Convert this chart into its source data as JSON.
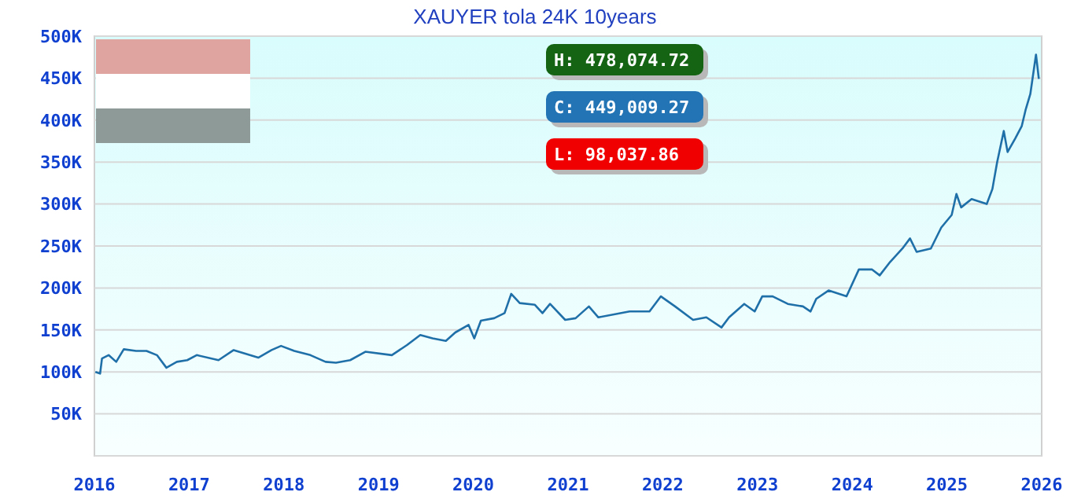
{
  "chart_data": {
    "type": "line",
    "title": "XAUYER tola 24K 10years",
    "x": [
      2016.01,
      2016.06,
      2016.08,
      2016.15,
      2016.23,
      2016.31,
      2016.44,
      2016.55,
      2016.66,
      2016.76,
      2016.87,
      2016.98,
      2017.08,
      2017.31,
      2017.47,
      2017.73,
      2017.87,
      2017.97,
      2018.11,
      2018.28,
      2018.44,
      2018.55,
      2018.7,
      2018.86,
      2019.14,
      2019.3,
      2019.44,
      2019.57,
      2019.71,
      2019.81,
      2019.95,
      2020.01,
      2020.08,
      2020.22,
      2020.33,
      2020.4,
      2020.49,
      2020.65,
      2020.73,
      2020.81,
      2020.97,
      2021.08,
      2021.22,
      2021.32,
      2021.65,
      2021.86,
      2021.98,
      2022.13,
      2022.32,
      2022.46,
      2022.62,
      2022.7,
      2022.86,
      2022.97,
      2023.05,
      2023.16,
      2023.32,
      2023.48,
      2023.56,
      2023.62,
      2023.75,
      2023.94,
      2024.07,
      2024.21,
      2024.29,
      2024.4,
      2024.53,
      2024.61,
      2024.68,
      2024.83,
      2024.94,
      2025.05,
      2025.1,
      2025.15,
      2025.26,
      2025.42,
      2025.48,
      2025.53,
      2025.6,
      2025.64,
      2025.72,
      2025.79,
      2025.83,
      2025.88,
      2025.94,
      2025.97
    ],
    "series": [
      {
        "color": "#1f6fa8",
        "values": [
          100,
          98,
          116,
          120,
          112,
          127,
          125,
          125,
          120,
          105,
          112,
          114,
          120,
          114,
          126,
          117,
          126,
          131,
          125,
          120,
          112,
          111,
          114,
          124,
          120,
          132,
          144,
          140,
          137,
          147,
          156,
          140,
          161,
          164,
          170,
          193,
          182,
          180,
          170,
          181,
          162,
          164,
          178,
          165,
          172,
          172,
          190,
          178,
          162,
          165,
          153,
          165,
          181,
          172,
          190,
          190,
          181,
          178,
          172,
          187,
          197,
          190,
          222,
          222,
          215,
          231,
          247,
          259,
          243,
          247,
          272,
          287,
          312,
          296,
          306,
          300,
          318,
          350,
          387,
          362,
          378,
          393,
          412,
          431,
          478,
          449
        ]
      }
    ],
    "xlim": [
      2016,
      2026
    ],
    "xticks": [
      2016,
      2017,
      2018,
      2019,
      2020,
      2021,
      2022,
      2023,
      2024,
      2025,
      2026
    ],
    "ylim": [
      0,
      500
    ],
    "yticks": [
      {
        "value": 0,
        "label": null
      },
      {
        "value": 50,
        "label": "50K"
      },
      {
        "value": 100,
        "label": "100K"
      },
      {
        "value": 150,
        "label": "150K"
      },
      {
        "value": 200,
        "label": "200K"
      },
      {
        "value": 250,
        "label": "250K"
      },
      {
        "value": 300,
        "label": "300K"
      },
      {
        "value": 350,
        "label": "350K"
      },
      {
        "value": 400,
        "label": "400K"
      },
      {
        "value": 450,
        "label": "450K"
      },
      {
        "value": 500,
        "label": "500K"
      }
    ],
    "grid": "y",
    "annotations": [
      "H: 478,074.72",
      "C: 449,009.27",
      "L: 98,037.86"
    ]
  }
}
